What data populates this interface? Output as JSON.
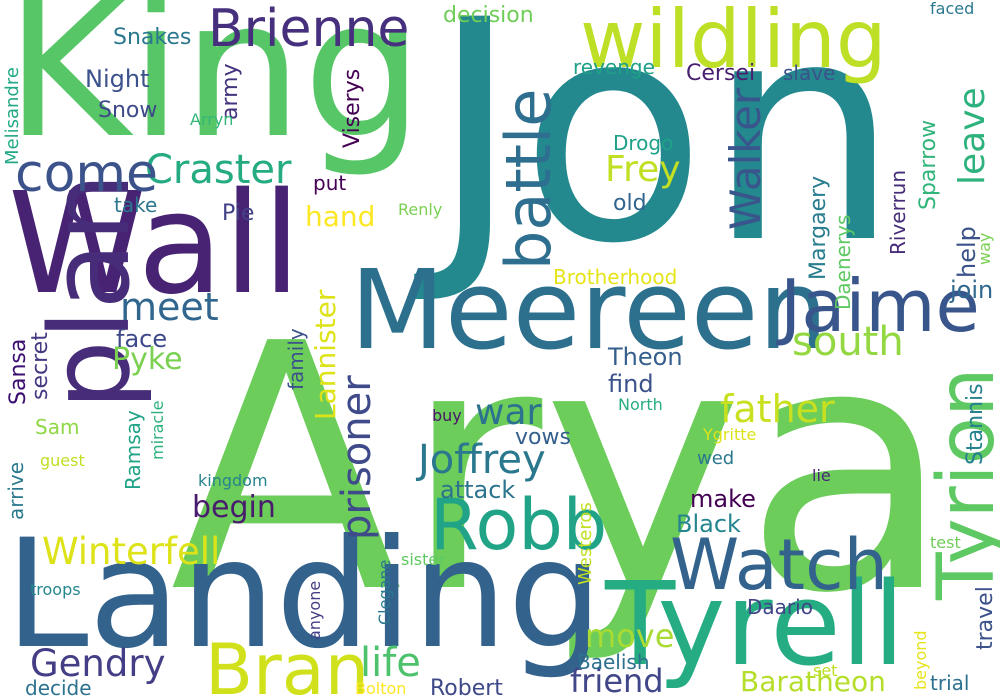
{
  "palette": [
    "#440154",
    "#472d7b",
    "#3b528b",
    "#2c728e",
    "#21918c",
    "#28ae80",
    "#5ec962",
    "#addc30",
    "#fde725"
  ],
  "words": [
    {
      "text": "Arya",
      "color": "#6ccd5a"
    },
    {
      "text": "Jon",
      "color": "#23898e"
    },
    {
      "text": "King",
      "color": "#56c667"
    },
    {
      "text": "Wall",
      "color": "#482374"
    },
    {
      "text": "Landing",
      "color": "#33628d"
    },
    {
      "text": "Meereen",
      "color": "#2d708e"
    },
    {
      "text": "plan",
      "color": "#472c7a"
    },
    {
      "text": "wildling",
      "color": "#bddf26"
    },
    {
      "text": "Tyrell",
      "color": "#25ac82"
    },
    {
      "text": "Robb",
      "color": "#20a386"
    },
    {
      "text": "Watch",
      "color": "#33638d"
    },
    {
      "text": "Brienne",
      "color": "#46307e"
    },
    {
      "text": "Tyrion",
      "color": "#5ec962"
    },
    {
      "text": "battle",
      "color": "#2e6e8e"
    },
    {
      "text": "Jaime",
      "color": "#39568c"
    },
    {
      "text": "Bran",
      "color": "#d0e11c"
    },
    {
      "text": "Craster",
      "color": "#25ab82"
    },
    {
      "text": "come",
      "color": "#3b528b"
    },
    {
      "text": "Walker",
      "color": "#39568c"
    },
    {
      "text": "Joffrey",
      "color": "#2a788e"
    },
    {
      "text": "prisoner",
      "color": "#3e4a89"
    },
    {
      "text": "Winterfell",
      "color": "#dde318"
    },
    {
      "text": "Gendry",
      "color": "#433e85"
    },
    {
      "text": "father",
      "color": "#c8e020"
    },
    {
      "text": "south",
      "color": "#93d741"
    },
    {
      "text": "life",
      "color": "#4cc26c"
    },
    {
      "text": "move",
      "color": "#a8db34"
    },
    {
      "text": "meet",
      "color": "#31668e"
    },
    {
      "text": "war",
      "color": "#2c728e"
    },
    {
      "text": "Frey",
      "color": "#c2df23"
    },
    {
      "text": "leave",
      "color": "#2db27d"
    },
    {
      "text": "friend",
      "color": "#404688"
    },
    {
      "text": "Baratheon",
      "color": "#b5de2b"
    },
    {
      "text": "Pyke",
      "color": "#7ad151"
    },
    {
      "text": "begin",
      "color": "#481b6d"
    },
    {
      "text": "Lannister",
      "color": "#dde318"
    },
    {
      "text": "hand",
      "color": "#fde725"
    },
    {
      "text": "Night",
      "color": "#3b528b"
    },
    {
      "text": "Snakes",
      "color": "#2a788e"
    },
    {
      "text": "face",
      "color": "#3e4989"
    },
    {
      "text": "Theon",
      "color": "#355f8d"
    },
    {
      "text": "find",
      "color": "#3b528b"
    },
    {
      "text": "attack",
      "color": "#2c738e"
    },
    {
      "text": "Black",
      "color": "#25858e"
    },
    {
      "text": "make",
      "color": "#440154"
    },
    {
      "text": "help",
      "color": "#3b528b"
    },
    {
      "text": "join",
      "color": "#31688e"
    },
    {
      "text": "Margaery",
      "color": "#287d8e"
    },
    {
      "text": "Daenerys",
      "color": "#5ec962"
    },
    {
      "text": "Sparrow",
      "color": "#31b57b"
    },
    {
      "text": "Riverrun",
      "color": "#472c7a"
    },
    {
      "text": "Stannis",
      "color": "#27808e"
    },
    {
      "text": "Cersei",
      "color": "#481f70"
    },
    {
      "text": "slave",
      "color": "#3b528b"
    },
    {
      "text": "revenge",
      "color": "#1fa088"
    },
    {
      "text": "decision",
      "color": "#6ece58"
    },
    {
      "text": "faced",
      "color": "#2a788e"
    },
    {
      "text": "Melisandre",
      "color": "#22a884"
    },
    {
      "text": "army",
      "color": "#46337e"
    },
    {
      "text": "Snow",
      "color": "#3e4989"
    },
    {
      "text": "Arryn",
      "color": "#35b779"
    },
    {
      "text": "Viserys",
      "color": "#440154"
    },
    {
      "text": "Drogo",
      "color": "#1fa088"
    },
    {
      "text": "old",
      "color": "#32648e"
    },
    {
      "text": "put",
      "color": "#440154"
    },
    {
      "text": "take",
      "color": "#2a778e"
    },
    {
      "text": "Pie",
      "color": "#424086"
    },
    {
      "text": "Renly",
      "color": "#7ad151"
    },
    {
      "text": "way",
      "color": "#7ad151"
    },
    {
      "text": "Brotherhood",
      "color": "#e5e419"
    },
    {
      "text": "Sansa",
      "color": "#3b0f70"
    },
    {
      "text": "secret",
      "color": "#443983"
    },
    {
      "text": "family",
      "color": "#3b528b"
    },
    {
      "text": "miracle",
      "color": "#2db27d"
    },
    {
      "text": "Sam",
      "color": "#8fd744"
    },
    {
      "text": "buy",
      "color": "#481467"
    },
    {
      "text": "North",
      "color": "#27ad81"
    },
    {
      "text": "Ygritte",
      "color": "#dde318"
    },
    {
      "text": "arrive",
      "color": "#297a8e"
    },
    {
      "text": "guest",
      "color": "#c2df23"
    },
    {
      "text": "Ramsay",
      "color": "#20a386"
    },
    {
      "text": "vows",
      "color": "#355f8d"
    },
    {
      "text": "wed",
      "color": "#2a788e"
    },
    {
      "text": "lie",
      "color": "#482878"
    },
    {
      "text": "kingdom",
      "color": "#25838e"
    },
    {
      "text": "Westeros",
      "color": "#c2df23"
    },
    {
      "text": "Clegane",
      "color": "#2a788e"
    },
    {
      "text": "sister",
      "color": "#5ec962"
    },
    {
      "text": "test",
      "color": "#6ece58"
    },
    {
      "text": "troops",
      "color": "#24868e"
    },
    {
      "text": "anyone",
      "color": "#433e85"
    },
    {
      "text": "decide",
      "color": "#2c728e"
    },
    {
      "text": "Bolton",
      "color": "#fde725"
    },
    {
      "text": "Robert",
      "color": "#3e4989"
    },
    {
      "text": "Baelish",
      "color": "#2c728e"
    },
    {
      "text": "Daario",
      "color": "#414487"
    },
    {
      "text": "beyond",
      "color": "#e5e419"
    },
    {
      "text": "set",
      "color": "#bddf26"
    },
    {
      "text": "trial",
      "color": "#2c728e"
    },
    {
      "text": "travel",
      "color": "#3b528b"
    }
  ]
}
